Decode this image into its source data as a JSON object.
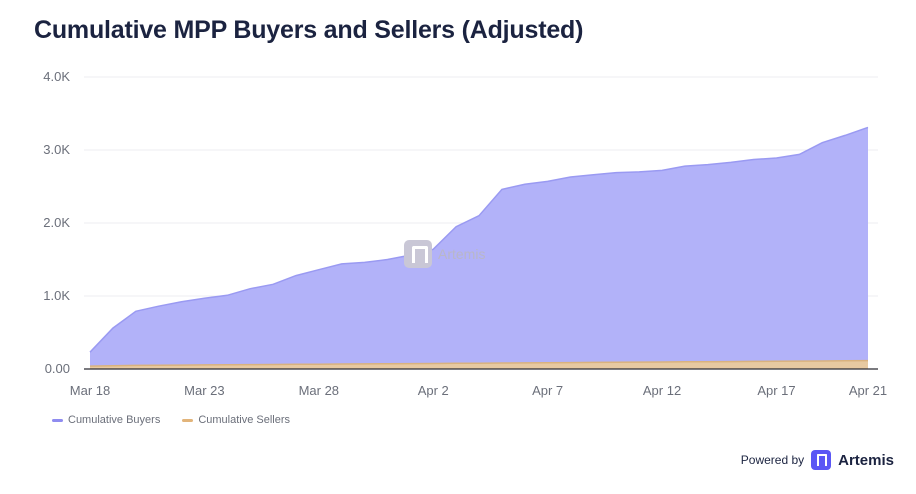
{
  "title": "Cumulative MPP Buyers and Sellers (Adjusted)",
  "watermark": "Artemis",
  "footer": {
    "powered_by": "Powered by",
    "brand": "Artemis"
  },
  "colors": {
    "buyers": "#b2b2f9",
    "buyers_line": "#9a9af2",
    "sellers": "#e7c9a1",
    "title": "#1b2340",
    "brand": "#5b57f5"
  },
  "chart_data": {
    "type": "area",
    "title": "Cumulative MPP Buyers and Sellers (Adjusted)",
    "xlabel": "",
    "ylabel": "",
    "ylim": [
      0,
      4000
    ],
    "y_ticks": [
      "0.00",
      "1.0K",
      "2.0K",
      "3.0K",
      "4.0K"
    ],
    "x_tick_labels": [
      "Mar 18",
      "Mar 23",
      "Mar 28",
      "Apr 2",
      "Apr 7",
      "Apr 12",
      "Apr 17",
      "Apr 21"
    ],
    "grid": true,
    "legend_position": "bottom-left",
    "x": [
      "Mar 18",
      "Mar 19",
      "Mar 20",
      "Mar 21",
      "Mar 22",
      "Mar 23",
      "Mar 24",
      "Mar 25",
      "Mar 26",
      "Mar 27",
      "Mar 28",
      "Mar 29",
      "Mar 30",
      "Mar 31",
      "Apr 1",
      "Apr 2",
      "Apr 3",
      "Apr 4",
      "Apr 5",
      "Apr 6",
      "Apr 7",
      "Apr 8",
      "Apr 9",
      "Apr 10",
      "Apr 11",
      "Apr 12",
      "Apr 13",
      "Apr 14",
      "Apr 15",
      "Apr 16",
      "Apr 17",
      "Apr 18",
      "Apr 19",
      "Apr 20",
      "Apr 21"
    ],
    "series": [
      {
        "name": "Cumulative Buyers",
        "values": [
          230,
          560,
          790,
          860,
          920,
          970,
          1010,
          1100,
          1160,
          1280,
          1360,
          1440,
          1460,
          1500,
          1560,
          1640,
          1950,
          2100,
          2460,
          2530,
          2570,
          2630,
          2660,
          2690,
          2700,
          2720,
          2780,
          2800,
          2830,
          2870,
          2890,
          2940,
          3100,
          3200,
          3310
        ]
      },
      {
        "name": "Cumulative Sellers",
        "values": [
          40,
          45,
          50,
          52,
          54,
          56,
          58,
          60,
          62,
          64,
          66,
          68,
          70,
          72,
          74,
          76,
          78,
          80,
          82,
          84,
          86,
          88,
          90,
          92,
          94,
          96,
          98,
          100,
          102,
          104,
          106,
          108,
          110,
          112,
          115
        ]
      }
    ]
  }
}
